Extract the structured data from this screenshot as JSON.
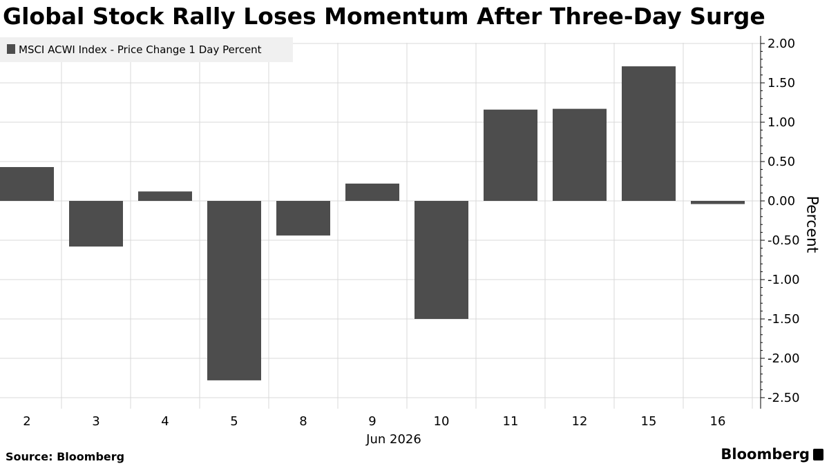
{
  "title": "Global Stock Rally Loses Momentum After Three-Day Surge",
  "source": "Source: Bloomberg",
  "brand": "Bloomberg",
  "colors": {
    "bar": "#4d4d4d",
    "grid": "#d9d9d9",
    "axis": "#000000",
    "legend_bg": "#f0f0f0"
  },
  "chart_data": {
    "type": "bar",
    "categories": [
      "2",
      "3",
      "4",
      "5",
      "8",
      "9",
      "10",
      "11",
      "12",
      "15",
      "16"
    ],
    "x_group_label": "Jun 2026",
    "series": [
      {
        "name": "MSCI ACWI Index - Price Change 1 Day Percent",
        "values": [
          0.43,
          -0.58,
          0.12,
          -2.28,
          -0.44,
          0.22,
          -1.5,
          1.16,
          1.17,
          1.71,
          -0.04
        ]
      }
    ],
    "ylabel": "Percent",
    "ylim": [
      -2.5,
      2.0
    ],
    "yticks": [
      2.0,
      1.5,
      1.0,
      0.5,
      0.0,
      -0.5,
      -1.0,
      -1.5,
      -2.0,
      -2.5
    ],
    "ytick_labels": [
      "2.00",
      "1.50",
      "1.00",
      "0.50",
      "0.00",
      "-0.50",
      "-1.00",
      "-1.50",
      "-2.00",
      "-2.50"
    ],
    "y_axis_side": "right",
    "grid": true,
    "legend_placement": "top-left"
  }
}
